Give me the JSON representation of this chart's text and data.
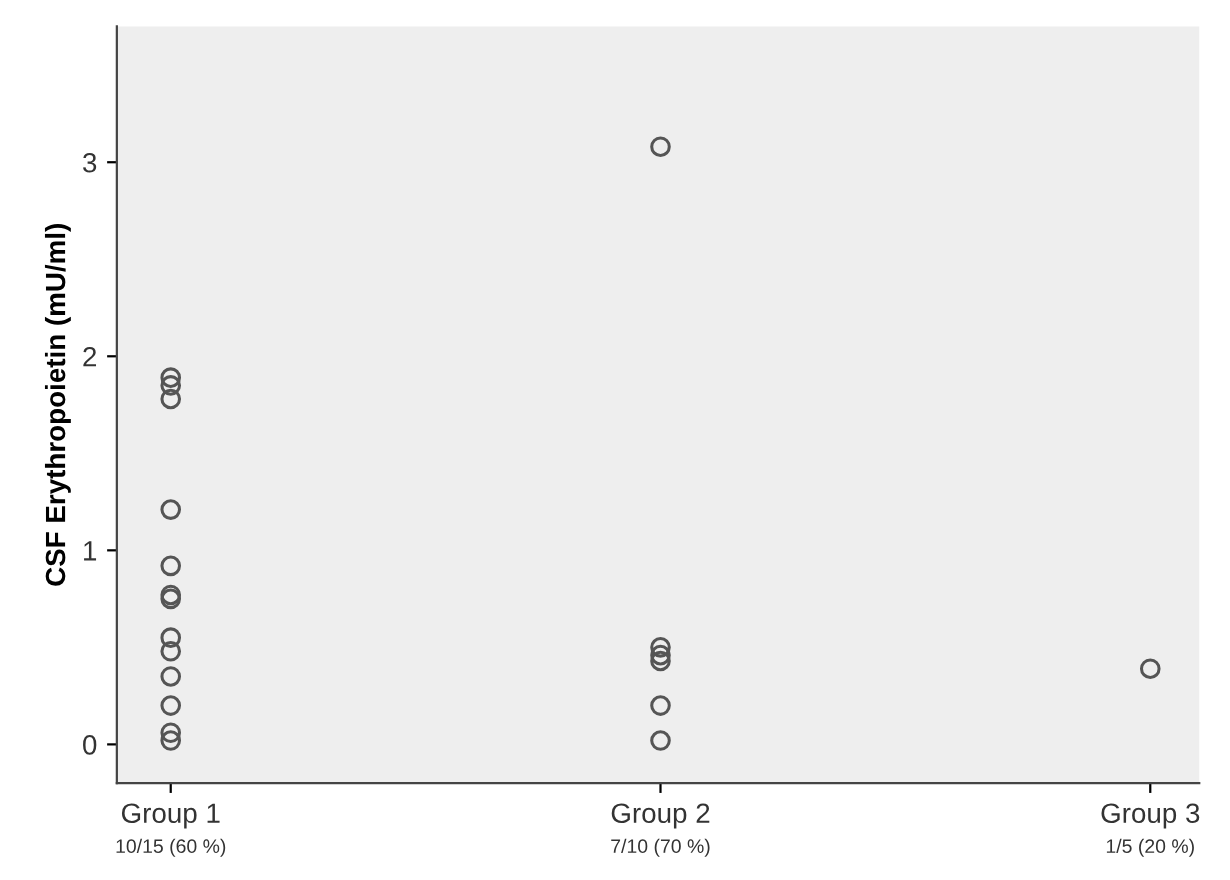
{
  "chart_data": {
    "type": "scatter",
    "ylabel": "CSF Erythropoietin (mU/ml)",
    "categories": [
      "Group 1",
      "Group 2",
      "Group 3"
    ],
    "series": [
      {
        "color": "#555555",
        "x": [
          "Group 1",
          "Group 1",
          "Group 1",
          "Group 1",
          "Group 1",
          "Group 1",
          "Group 1",
          "Group 1",
          "Group 1",
          "Group 1",
          "Group 1",
          "Group 1",
          "Group 1",
          "Group 1",
          "Group 2",
          "Group 2",
          "Group 2",
          "Group 2",
          "Group 2",
          "Group 2",
          "Group 3"
        ],
        "values": [
          1.89,
          1.85,
          1.78,
          1.21,
          0.92,
          0.77,
          0.75,
          0.55,
          0.48,
          0.35,
          0.2,
          0.06,
          0.02,
          null,
          3.08,
          0.5,
          0.46,
          0.43,
          0.2,
          0.02,
          0.39
        ]
      }
    ],
    "ylim": [
      -0.2,
      3.7
    ],
    "yticks": [
      0,
      1,
      2,
      3
    ],
    "marker": "circle",
    "grid": false,
    "legend": false,
    "annotations": [
      "10/15 (60 %)",
      "7/10 (70 %)",
      "1/5 (20 %)"
    ]
  }
}
